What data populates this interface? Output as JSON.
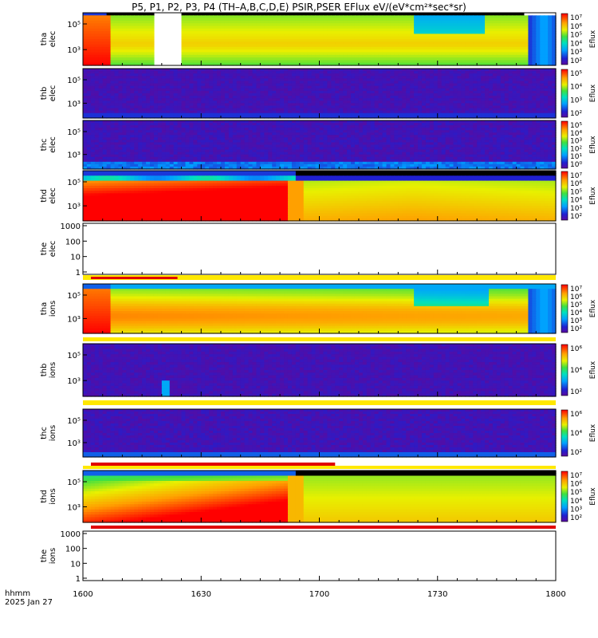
{
  "title": "P5, P1, P2, P3, P4 (TH–A,B,C,D,E) PSIR,PSER EFlux eV/(eV*cm²*sec*sr)",
  "time_axis": {
    "label_line1": "hhmm",
    "label_line2": "2025 Jan 27",
    "ticks": [
      "1600",
      "1630",
      "1700",
      "1730",
      "1800"
    ]
  },
  "chart_data": [
    {
      "type": "heatmap",
      "panel": "tha elec",
      "ylabel": [
        "tha",
        "elec"
      ],
      "yticks": [
        "10⁵",
        "10³"
      ],
      "colorbar": {
        "label": "Eflux",
        "ticks": [
          "10⁷",
          "10⁶",
          "10⁵",
          "10⁴",
          "10³",
          "10²"
        ]
      },
      "data_gap_hhmm": [
        "1617",
        "1625"
      ]
    },
    {
      "type": "heatmap",
      "panel": "thb elec",
      "ylabel": [
        "thb",
        "elec"
      ],
      "yticks": [
        "10⁵",
        "10³"
      ],
      "colorbar": {
        "label": "Eflux",
        "ticks": [
          "10⁵",
          "10⁴",
          "10³",
          "10²"
        ]
      }
    },
    {
      "type": "heatmap",
      "panel": "thc elec",
      "ylabel": [
        "thc",
        "elec"
      ],
      "yticks": [
        "10⁵",
        "10³"
      ],
      "colorbar": {
        "label": "Eflux",
        "ticks": [
          "10⁵",
          "10⁴",
          "10³",
          "10²",
          "10¹",
          "10⁰"
        ]
      }
    },
    {
      "type": "heatmap",
      "panel": "thd elec",
      "ylabel": [
        "thd",
        "elec"
      ],
      "yticks": [
        "10⁵",
        "10³"
      ],
      "colorbar": {
        "label": "Eflux",
        "ticks": [
          "10⁷",
          "10⁶",
          "10⁵",
          "10⁴",
          "10³",
          "10²"
        ]
      }
    },
    {
      "type": "heatmap",
      "panel": "the elec",
      "ylabel": [
        "the",
        "elec"
      ],
      "yticks": [
        "1000",
        "100",
        "10",
        "1"
      ],
      "empty": true,
      "status_bar_until_hhmm": "1624"
    },
    {
      "type": "heatmap",
      "panel": "tha ions",
      "ylabel": [
        "tha",
        "ions"
      ],
      "yticks": [
        "10⁵",
        "10³"
      ],
      "colorbar": {
        "label": "Eflux",
        "ticks": [
          "10⁷",
          "10⁶",
          "10⁵",
          "10⁴",
          "10³",
          "10²"
        ]
      }
    },
    {
      "type": "heatmap",
      "panel": "thb ions",
      "ylabel": [
        "thb",
        "ions"
      ],
      "yticks": [
        "10⁵",
        "10³"
      ],
      "colorbar": {
        "label": "Eflux",
        "ticks": [
          "10⁶",
          "10⁴",
          "10²"
        ]
      }
    },
    {
      "type": "heatmap",
      "panel": "thc ions",
      "ylabel": [
        "thc",
        "ions"
      ],
      "yticks": [
        "10⁵",
        "10³"
      ],
      "colorbar": {
        "label": "Eflux",
        "ticks": [
          "10⁶",
          "10⁴",
          "10²"
        ]
      },
      "status_bar_until_hhmm": "1704"
    },
    {
      "type": "heatmap",
      "panel": "thd ions",
      "ylabel": [
        "thd",
        "ions"
      ],
      "yticks": [
        "10⁵",
        "10³"
      ],
      "colorbar": {
        "label": "Eflux",
        "ticks": [
          "10⁷",
          "10⁶",
          "10⁵",
          "10⁴",
          "10³",
          "10²"
        ]
      }
    },
    {
      "type": "heatmap",
      "panel": "the ions",
      "ylabel": [
        "the",
        "ions"
      ],
      "yticks": [
        "1000",
        "100",
        "10",
        "1"
      ],
      "empty": true
    }
  ],
  "colors": {
    "spectrogram_red": "#e00000",
    "status_yellow": "#ffe800",
    "colorbar_top": "#ff0000",
    "colorbar_bottom": "#5a0aa0"
  }
}
